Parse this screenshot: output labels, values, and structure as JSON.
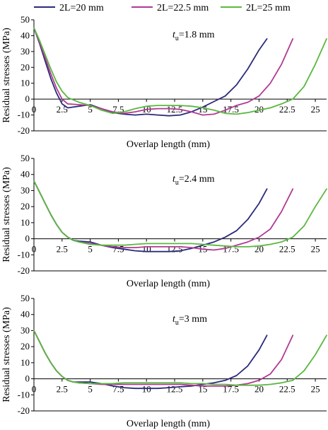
{
  "legend": [
    {
      "label": "2L=20 mm",
      "color": "#2b2a7a"
    },
    {
      "label": "2L=22.5 mm",
      "color": "#b03a92"
    },
    {
      "label": "2L=25 mm",
      "color": "#5ab840"
    }
  ],
  "chart_data": [
    {
      "type": "line",
      "annotation": {
        "symbol": "t",
        "subscript": "u",
        "value": "=1.8 mm"
      },
      "xlabel": "Overlap length (mm)",
      "ylabel": "Residual stresses (MPa)",
      "xlim": [
        0,
        26
      ],
      "ylim": [
        -20,
        50
      ],
      "xticks": [
        0,
        2.5,
        5,
        7.5,
        10,
        12.5,
        15,
        17.5,
        20,
        22.5,
        25
      ],
      "xtick_labels": [
        "0",
        "2.5",
        "5",
        "7.5",
        "10",
        "12.5",
        "15",
        "17.5",
        "20",
        "22.5",
        "25"
      ],
      "yticks": [
        -20,
        -10,
        0,
        10,
        20,
        30,
        40,
        50
      ],
      "ytick_labels": [
        "-20",
        "-10",
        "0",
        "10",
        "20",
        "30",
        "40",
        "50"
      ],
      "series": [
        {
          "name": "2L=20 mm",
          "color": "#2b2a7a",
          "x": [
            0,
            0.5,
            1,
            1.5,
            2,
            2.5,
            3,
            4,
            5,
            6,
            7,
            8,
            9,
            10,
            11,
            12,
            13,
            14,
            15,
            16,
            17,
            18,
            19,
            20,
            20.7
          ],
          "y": [
            45,
            35,
            24,
            13,
            4,
            -3,
            -5.5,
            -4.5,
            -3.5,
            -6,
            -8.5,
            -9.5,
            -10,
            -9.5,
            -10,
            -10.5,
            -10,
            -8,
            -5,
            -1.5,
            2,
            9,
            19,
            31,
            38
          ]
        },
        {
          "name": "2L=22.5 mm",
          "color": "#b03a92",
          "x": [
            0,
            0.5,
            1,
            1.5,
            2,
            2.5,
            3,
            4,
            5,
            6,
            7,
            8,
            9,
            10,
            11,
            12,
            13,
            14,
            15,
            16,
            17,
            18,
            19,
            20,
            21,
            22,
            23
          ],
          "y": [
            45,
            36,
            26,
            16,
            7,
            0,
            -3,
            -3.5,
            -4,
            -6,
            -8,
            -9,
            -8,
            -6.5,
            -6,
            -6,
            -6.5,
            -8,
            -10,
            -9.5,
            -7,
            -4,
            -2,
            2,
            10,
            22,
            38
          ]
        },
        {
          "name": "2L=25 mm",
          "color": "#5ab840",
          "x": [
            0,
            0.5,
            1,
            1.5,
            2,
            2.5,
            3,
            4,
            5,
            6,
            7,
            8,
            9,
            10,
            11,
            12,
            13,
            14,
            15,
            16,
            17,
            18,
            19,
            20,
            21,
            22,
            23,
            24,
            25,
            26
          ],
          "y": [
            45,
            37,
            28,
            19,
            11,
            5,
            1,
            -2,
            -4,
            -7,
            -9,
            -8,
            -6,
            -4.5,
            -4,
            -4,
            -4,
            -4.5,
            -5.5,
            -7,
            -9,
            -9.5,
            -8.5,
            -7,
            -5.5,
            -3,
            0,
            8,
            22,
            38
          ]
        }
      ]
    },
    {
      "type": "line",
      "annotation": {
        "symbol": "t",
        "subscript": "u",
        "value": "=2.4 mm"
      },
      "xlabel": "Overlap length (mm)",
      "ylabel": "Residual stresses (MPa)",
      "xlim": [
        0,
        26
      ],
      "ylim": [
        -20,
        50
      ],
      "xticks": [
        0,
        2.5,
        5,
        7.5,
        10,
        12.5,
        15,
        17.5,
        20,
        22.5,
        25
      ],
      "xtick_labels": [
        "0",
        "2.5",
        "5",
        "7.5",
        "10",
        "12.5",
        "15",
        "17.5",
        "20",
        "22.5",
        "25"
      ],
      "yticks": [
        -20,
        -10,
        0,
        10,
        20,
        30,
        40,
        50
      ],
      "ytick_labels": [
        "-20",
        "-10",
        "0",
        "10",
        "20",
        "30",
        "40",
        "50"
      ],
      "series": [
        {
          "name": "2L=20 mm",
          "color": "#2b2a7a",
          "x": [
            0,
            0.5,
            1,
            1.5,
            2,
            2.5,
            3,
            3.5,
            4,
            5,
            6,
            7,
            8,
            9,
            10,
            11,
            12,
            13,
            14,
            15,
            16,
            17,
            18,
            19,
            20,
            20.7
          ],
          "y": [
            36,
            29,
            22,
            15,
            9,
            4,
            1,
            -1,
            -1.5,
            -2,
            -4,
            -5.5,
            -6.5,
            -7.5,
            -8,
            -8,
            -8,
            -7.5,
            -6,
            -4,
            -2,
            1,
            5,
            12,
            22,
            31
          ]
        },
        {
          "name": "2L=22.5 mm",
          "color": "#b03a92",
          "x": [
            0,
            0.5,
            1,
            1.5,
            2,
            2.5,
            3,
            3.5,
            4,
            5,
            6,
            7,
            8,
            9,
            10,
            11,
            12,
            13,
            14,
            15,
            16,
            17,
            18,
            19,
            20,
            21,
            22,
            23
          ],
          "y": [
            36,
            29,
            22,
            15,
            9,
            4,
            1,
            -1,
            -2,
            -3,
            -4,
            -5,
            -5.5,
            -5.5,
            -5,
            -5,
            -5,
            -5,
            -5.5,
            -6.5,
            -7,
            -6,
            -4,
            -2,
            1,
            6,
            17,
            31
          ]
        },
        {
          "name": "2L=25 mm",
          "color": "#5ab840",
          "x": [
            0,
            0.5,
            1,
            1.5,
            2,
            2.5,
            3,
            3.5,
            4,
            5,
            6,
            7,
            8,
            9,
            10,
            11,
            12,
            13,
            14,
            15,
            16,
            17,
            18,
            19,
            20,
            21,
            22,
            23,
            24,
            25,
            26
          ],
          "y": [
            36,
            29,
            22,
            15,
            9,
            4,
            1,
            -1,
            -2,
            -3.5,
            -4,
            -4,
            -4,
            -3.5,
            -3,
            -3,
            -3,
            -3,
            -3,
            -3.5,
            -4,
            -4.5,
            -5,
            -5,
            -4.5,
            -3.5,
            -2,
            1,
            8,
            20,
            31
          ]
        }
      ]
    },
    {
      "type": "line",
      "annotation": {
        "symbol": "t",
        "subscript": "u",
        "value": "=3 mm"
      },
      "xlabel": "Overlap length (mm)",
      "ylabel": "Residual stresses (MPa)",
      "xlim": [
        0,
        26
      ],
      "ylim": [
        -20,
        50
      ],
      "xticks": [
        0,
        2.5,
        5,
        7.5,
        10,
        12.5,
        15,
        17.5,
        20,
        22.5,
        25
      ],
      "xtick_labels": [
        "0",
        "2.5",
        "5",
        "7.5",
        "10",
        "12.5",
        "15",
        "17.5",
        "20",
        "22.5",
        "25"
      ],
      "yticks": [
        -20,
        -10,
        0,
        10,
        20,
        30,
        40,
        50
      ],
      "ytick_labels": [
        "-20",
        "-10",
        "0",
        "10",
        "20",
        "30",
        "40",
        "50"
      ],
      "series": [
        {
          "name": "2L=20 mm",
          "color": "#2b2a7a",
          "x": [
            0,
            0.5,
            1,
            1.5,
            2,
            2.5,
            3,
            3.5,
            4,
            5,
            6,
            7,
            8,
            9,
            10,
            11,
            12,
            13,
            14,
            15,
            16,
            17,
            18,
            19,
            20,
            20.7
          ],
          "y": [
            30,
            23,
            16,
            10,
            5,
            1.5,
            -1,
            -2,
            -2,
            -2,
            -3,
            -4.5,
            -5.5,
            -6,
            -6,
            -6,
            -5.5,
            -5,
            -4.5,
            -3.5,
            -2.5,
            -1,
            2,
            8,
            18,
            27
          ]
        },
        {
          "name": "2L=22.5 mm",
          "color": "#b03a92",
          "x": [
            0,
            0.5,
            1,
            1.5,
            2,
            2.5,
            3,
            3.5,
            4,
            5,
            6,
            7,
            8,
            9,
            10,
            11,
            12,
            13,
            14,
            15,
            16,
            17,
            18,
            19,
            20,
            21,
            22,
            23
          ],
          "y": [
            30,
            23,
            16,
            10,
            5,
            1.5,
            -1,
            -2,
            -2.5,
            -3,
            -3.5,
            -3.5,
            -3.5,
            -3.5,
            -3.5,
            -3.5,
            -3.5,
            -3.5,
            -4,
            -4.5,
            -4.5,
            -4.5,
            -4,
            -3,
            -1,
            3,
            12,
            27
          ]
        },
        {
          "name": "2L=25 mm",
          "color": "#5ab840",
          "x": [
            0,
            0.5,
            1,
            1.5,
            2,
            2.5,
            3,
            3.5,
            4,
            5,
            6,
            7,
            8,
            9,
            10,
            11,
            12,
            13,
            14,
            15,
            16,
            17,
            18,
            19,
            20,
            21,
            22,
            23,
            24,
            25,
            26
          ],
          "y": [
            30,
            23,
            16,
            10,
            5,
            1.5,
            -1,
            -2,
            -2.5,
            -3,
            -3,
            -3,
            -2.5,
            -2.5,
            -2.5,
            -2.5,
            -2.5,
            -2.5,
            -3,
            -3,
            -3.5,
            -3.5,
            -4,
            -4,
            -4,
            -3.5,
            -2.5,
            -1,
            5,
            15,
            27
          ]
        }
      ]
    }
  ]
}
